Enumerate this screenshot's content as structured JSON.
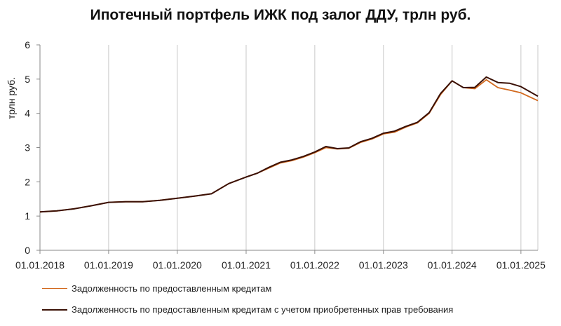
{
  "chart_data": {
    "type": "line",
    "title": "Ипотечный портфель ИЖК под залог ДДУ, трлн руб.",
    "ylabel": "трлн руб.",
    "xlabel": "",
    "ylim": [
      0,
      6
    ],
    "yticks": [
      "0",
      "1",
      "2",
      "3",
      "4",
      "5",
      "6"
    ],
    "xlim": [
      "2018-01-01",
      "2025-04-01"
    ],
    "xticks": [
      "01.01.2018",
      "01.01.2019",
      "01.01.2020",
      "01.01.2021",
      "01.01.2022",
      "01.01.2023",
      "01.01.2024",
      "01.01.2025"
    ],
    "grid": "vertical",
    "legend_position": "bottom",
    "x": [
      "2018-01-01",
      "2018-04-01",
      "2018-07-01",
      "2018-10-01",
      "2019-01-01",
      "2019-04-01",
      "2019-07-01",
      "2019-10-01",
      "2020-01-01",
      "2020-04-01",
      "2020-07-01",
      "2020-10-01",
      "2021-01-01",
      "2021-03-01",
      "2021-05-01",
      "2021-07-01",
      "2021-09-01",
      "2021-11-01",
      "2022-01-01",
      "2022-03-01",
      "2022-05-01",
      "2022-07-01",
      "2022-09-01",
      "2022-11-01",
      "2023-01-01",
      "2023-03-01",
      "2023-05-01",
      "2023-07-01",
      "2023-09-01",
      "2023-11-01",
      "2024-01-01",
      "2024-03-01",
      "2024-05-01",
      "2024-07-01",
      "2024-09-01",
      "2024-11-01",
      "2025-01-01",
      "2025-04-01"
    ],
    "series": [
      {
        "name": "Задолженность по предоставленным кредитам",
        "color": "#d2691e",
        "values": [
          1.12,
          1.15,
          1.21,
          1.3,
          1.4,
          1.42,
          1.42,
          1.46,
          1.52,
          1.58,
          1.65,
          1.95,
          2.14,
          2.25,
          2.4,
          2.55,
          2.62,
          2.72,
          2.85,
          3.0,
          2.96,
          2.98,
          3.15,
          3.25,
          3.4,
          3.45,
          3.6,
          3.72,
          4.0,
          4.55,
          4.95,
          4.75,
          4.72,
          4.98,
          4.75,
          4.68,
          4.6,
          4.37
        ]
      },
      {
        "name": "Задолженность по предоставленным кредитам с учетом  приобретенных прав требования",
        "color": "#3a1005",
        "values": [
          1.12,
          1.15,
          1.21,
          1.3,
          1.4,
          1.42,
          1.42,
          1.46,
          1.52,
          1.58,
          1.65,
          1.95,
          2.14,
          2.25,
          2.42,
          2.57,
          2.64,
          2.74,
          2.87,
          3.03,
          2.97,
          2.99,
          3.17,
          3.27,
          3.42,
          3.48,
          3.62,
          3.74,
          4.02,
          4.58,
          4.95,
          4.75,
          4.76,
          5.06,
          4.9,
          4.88,
          4.78,
          4.5
        ]
      }
    ]
  }
}
